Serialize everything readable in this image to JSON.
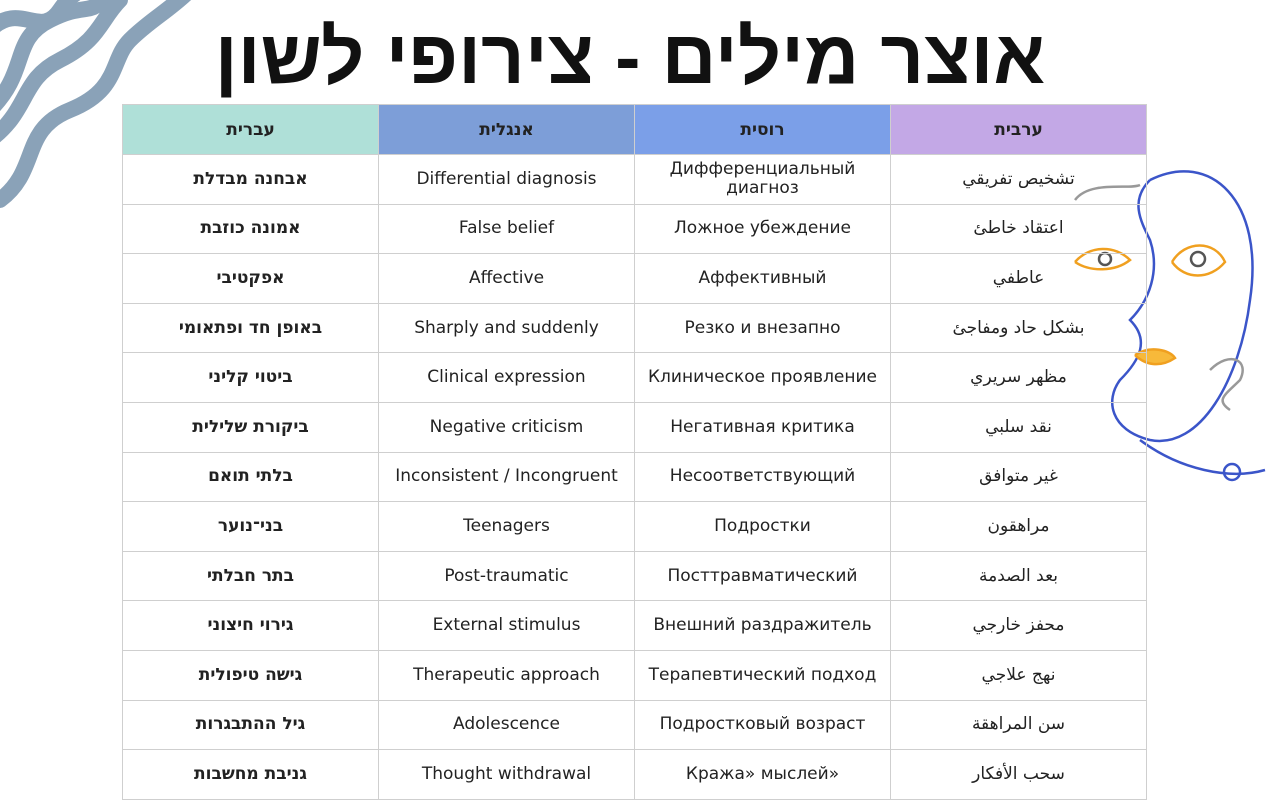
{
  "header": {
    "title": "אוצר מילים - צירופי לשון"
  },
  "table": {
    "columns": [
      "עברית",
      "אנגלית",
      "רוסית",
      "ערבית"
    ],
    "rows": [
      [
        "אבחנה מבדלת",
        "Differential diagnosis",
        "Дифференциальный диагноз",
        "تشخيص تفريقي"
      ],
      [
        "אמונה כוזבת",
        "False belief",
        "Ложное убеждение",
        "اعتقاد خاطئ"
      ],
      [
        "אפקטיבי",
        "Affective",
        "Аффективный",
        "عاطفي"
      ],
      [
        "באופן חד ופתאומי",
        "Sharply and suddenly",
        "Резко и внезапно",
        "بشكل حاد ومفاجئ"
      ],
      [
        "ביטוי קליני",
        "Clinical expression",
        "Клиническое проявление",
        "مظهر سريري"
      ],
      [
        "ביקורת שלילית",
        "Negative criticism",
        "Негативная критика",
        "نقد سلبي"
      ],
      [
        "בלתי תואם",
        "Inconsistent / Incongruent",
        "Несоответствующий",
        "غير متوافق"
      ],
      [
        "בני־נוער",
        "Teenagers",
        "Подростки",
        "مراهقون"
      ],
      [
        "בתר חבלתי",
        "Post-traumatic",
        "Посттравматический",
        "بعد الصدمة"
      ],
      [
        "גירוי חיצוני",
        "External stimulus",
        "Внешний раздражитель",
        "محفز خارجي"
      ],
      [
        "גישה טיפולית",
        "Therapeutic approach",
        "Терапевтический подход",
        "نهج علاجي"
      ],
      [
        "גיל ההתבגרות",
        "Adolescence",
        "Подростковый возраст",
        "سن المراهقة"
      ],
      [
        "גניבת מחשבות",
        "Thought withdrawal",
        "Кража» мыслей»",
        "سحب الأفكار"
      ]
    ]
  }
}
